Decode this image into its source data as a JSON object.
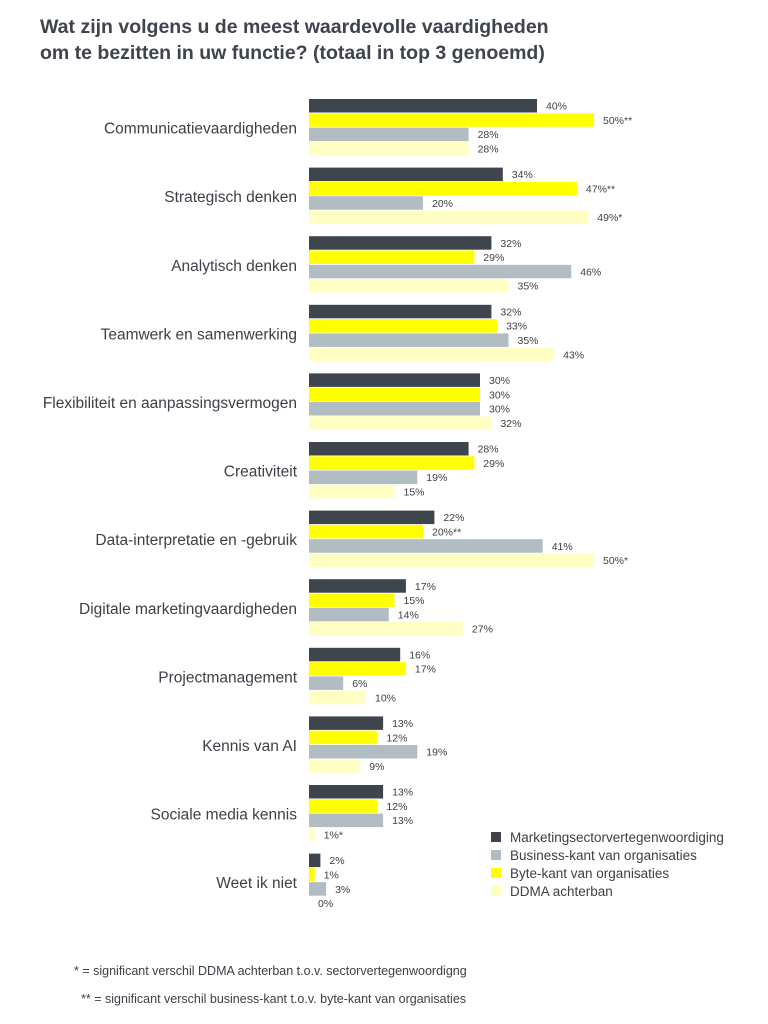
{
  "title_lines": [
    "Wat zijn volgens u de meest waardevolle vaardigheden",
    "om te bezitten in uw functie? (totaal in top 3 genoemd)"
  ],
  "colors": {
    "marketingsector": "#3f454c",
    "byte_kant": "#ffff00",
    "business_kant": "#b2bcc3",
    "ddma": "#ffffc4",
    "text": "#3c4047"
  },
  "chart_data": {
    "type": "bar",
    "orientation": "horizontal",
    "categories": [
      "Communicatievaardigheden",
      "Strategisch denken",
      "Analytisch denken",
      "Teamwerk en samenwerking",
      "Flexibiliteit en aanpassingsvermogen",
      "Creativiteit",
      "Data-interpretatie en -gebruik",
      "Digitale marketingvaardigheden",
      "Projectmanagement",
      "Kennis van AI",
      "Sociale media kennis",
      "Weet ik niet"
    ],
    "series": [
      {
        "name": "Marketingsectorvertegenwoordiging",
        "color": "#3f454c",
        "values": [
          40,
          34,
          32,
          32,
          30,
          28,
          22,
          17,
          16,
          13,
          13,
          2
        ],
        "labels": [
          "40%",
          "34%",
          "32%",
          "32%",
          "30%",
          "28%",
          "22%",
          "17%",
          "16%",
          "13%",
          "13%",
          "2%"
        ]
      },
      {
        "name": "Byte-kant van organisaties",
        "color": "#ffff00",
        "values": [
          50,
          47,
          29,
          33,
          30,
          29,
          20,
          15,
          17,
          12,
          12,
          1
        ],
        "labels": [
          "50%**",
          "47%**",
          "29%",
          "33%",
          "30%",
          "29%",
          "20%**",
          "15%",
          "17%",
          "12%",
          "12%",
          "1%"
        ]
      },
      {
        "name": "Business-kant van organisaties",
        "color": "#b2bcc3",
        "values": [
          28,
          20,
          46,
          35,
          30,
          19,
          41,
          14,
          6,
          19,
          13,
          3
        ],
        "labels": [
          "28%",
          "20%",
          "46%",
          "35%",
          "30%",
          "19%",
          "41%",
          "14%",
          "6%",
          "19%",
          "13%",
          "3%"
        ]
      },
      {
        "name": "DDMA achterban",
        "color": "#ffffc4",
        "values": [
          28,
          49,
          35,
          43,
          32,
          15,
          50,
          27,
          10,
          9,
          1,
          0
        ],
        "labels": [
          "28%",
          "49%*",
          "35%",
          "43%",
          "32%",
          "15%",
          "50%*",
          "27%",
          "10%",
          "9%",
          "1%*",
          "0%"
        ]
      }
    ],
    "xlim": [
      0,
      100
    ],
    "grid": false,
    "legend_position": "bottom-right"
  },
  "legend": [
    {
      "label": "Marketingsectorvertegenwoordiging",
      "color": "#3f454c"
    },
    {
      "label": "Business-kant van organisaties",
      "color": "#b2bcc3"
    },
    {
      "label": "Byte-kant van organisaties",
      "color": "#ffff00"
    },
    {
      "label": "DDMA achterban",
      "color": "#ffffc4"
    }
  ],
  "footnotes": {
    "single": "* = significant verschil DDMA achterban t.o.v. sectorvertegenwoordigng",
    "double": "** = significant verschil business-kant t.o.v. byte-kant van organisaties"
  }
}
